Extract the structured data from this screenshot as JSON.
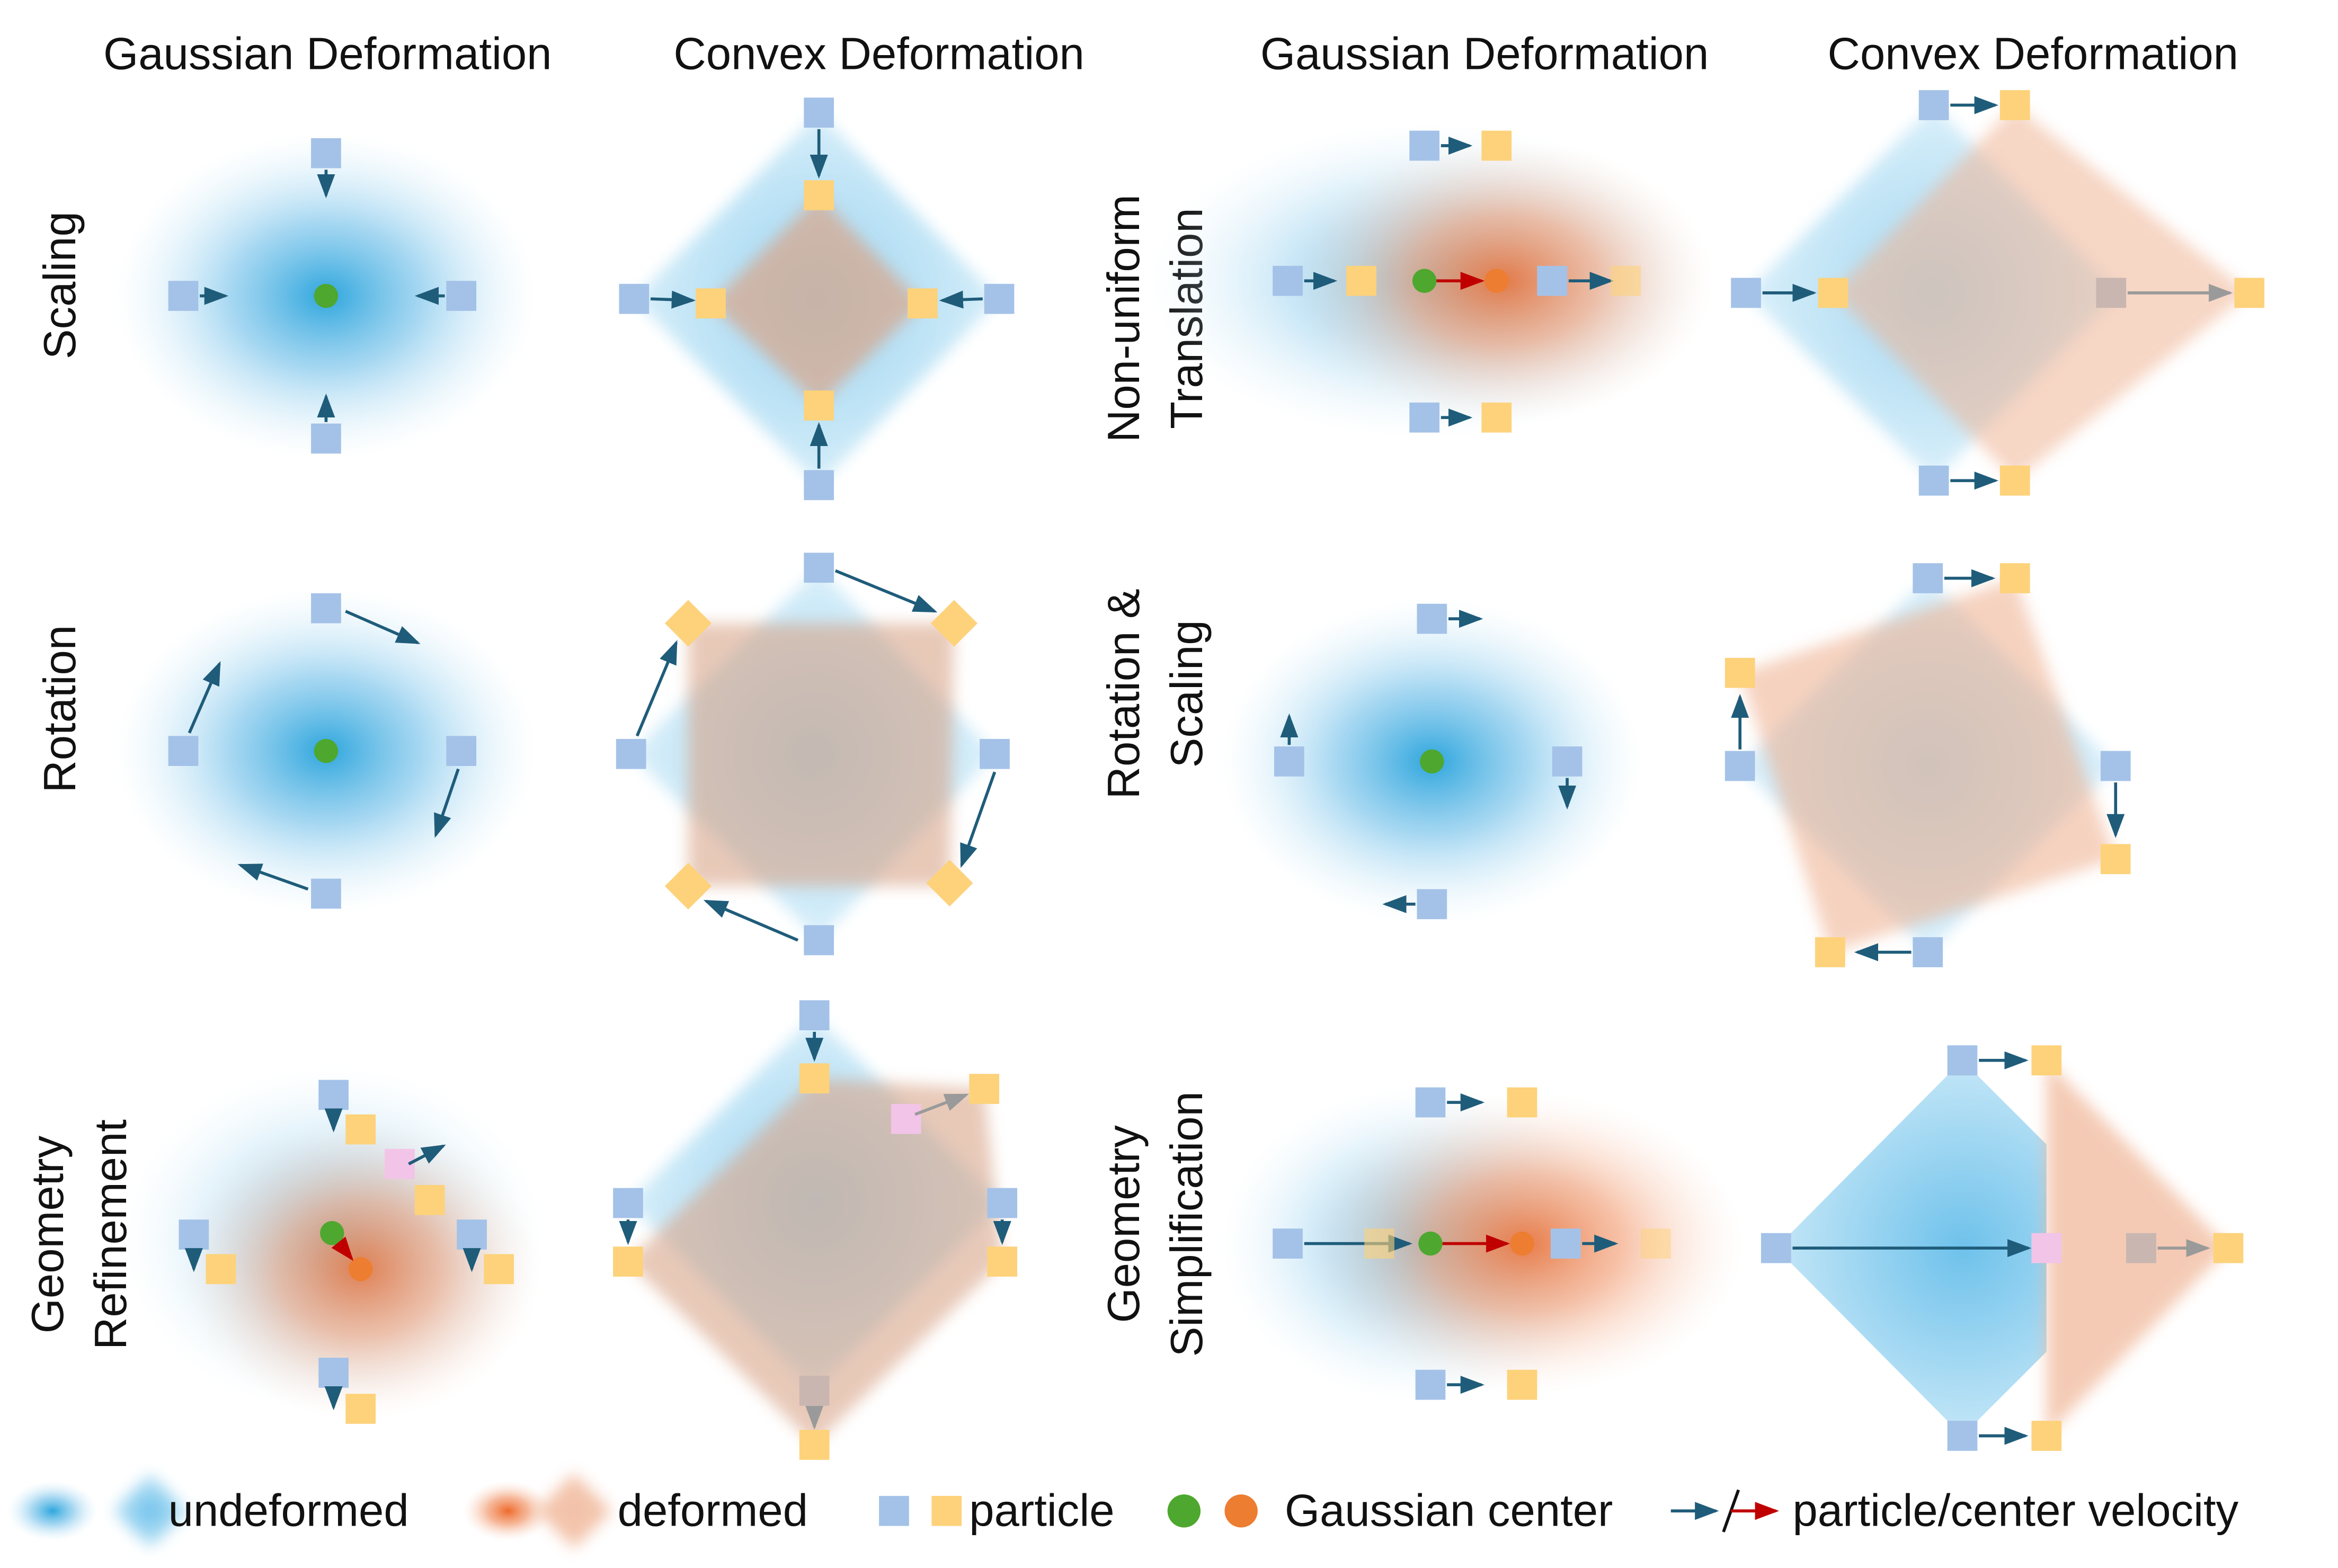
{
  "columns": [
    "Gaussian Deformation",
    "Convex Deformation",
    "Gaussian Deformation",
    "Convex Deformation"
  ],
  "row_labels": {
    "left": [
      [
        "Scaling"
      ],
      [
        "Rotation"
      ],
      [
        "Geometry",
        "Refinement"
      ]
    ],
    "right": [
      [
        "Non-uniform",
        "Translation"
      ],
      [
        "Rotation &",
        "Scaling"
      ],
      [
        "Geometry",
        "Simplification"
      ]
    ]
  },
  "legend": [
    "undeformed",
    "deformed",
    "particle",
    "Gaussian center",
    "particle/center velocity"
  ]
}
